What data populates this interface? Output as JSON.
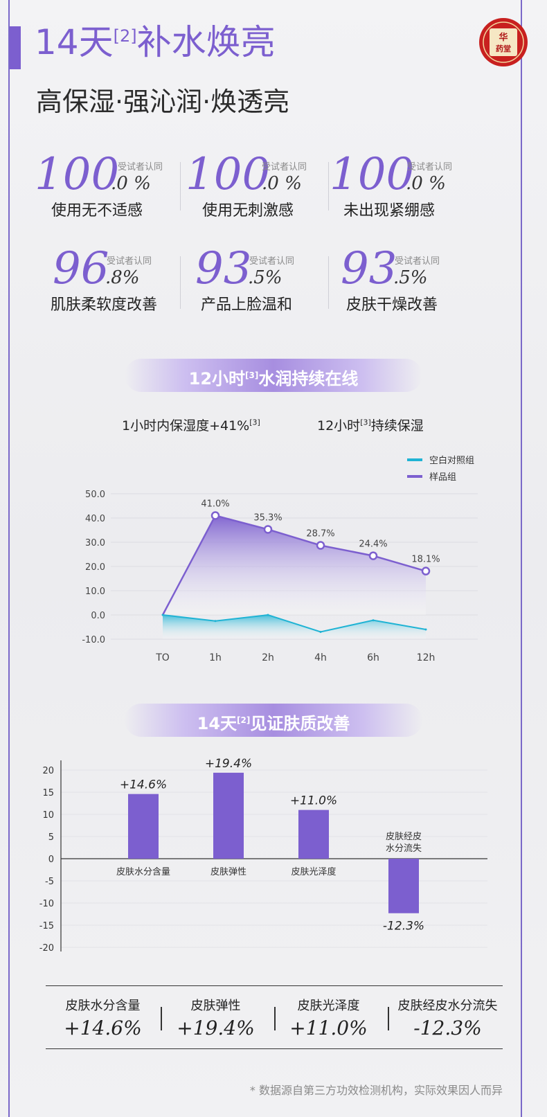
{
  "header": {
    "title_main": "14天",
    "title_sup": "[2]",
    "title_rest": "补水焕亮",
    "subtitle": "高保湿·强沁润·焕透亮",
    "logo_text": "华药堂"
  },
  "stats": [
    {
      "big": "100",
      "dec": ".0 %",
      "tag": "受试者认同",
      "label": "使用无不适感"
    },
    {
      "big": "100",
      "dec": ".0 %",
      "tag": "受试者认同",
      "label": "使用无刺激感"
    },
    {
      "big": "100",
      "dec": ".0 %",
      "tag": "受试者认同",
      "label": "未出现紧绷感"
    },
    {
      "big": "96",
      "dec": ".8%",
      "tag": "受试者认同",
      "label": "肌肤柔软度改善"
    },
    {
      "big": "93",
      "dec": ".5%",
      "tag": "受试者认同",
      "label": "产品上脸温和"
    },
    {
      "big": "93",
      "dec": ".5%",
      "tag": "受试者认同",
      "label": "皮肤干燥改善"
    }
  ],
  "section1": {
    "banner_a": "12小时",
    "banner_sup": "[3]",
    "banner_b": "水润持续在线",
    "left_a": "1小时内保湿度+41%",
    "left_sup": "[3]",
    "right_a": "12小时",
    "right_sup": "[3]",
    "right_b": "持续保湿"
  },
  "section2": {
    "banner_a": "14天",
    "banner_sup": "[2]",
    "banner_b": "见证肤质改善"
  },
  "summary": [
    {
      "label": "皮肤水分含量",
      "value": "+14.6%"
    },
    {
      "label": "皮肤弹性",
      "value": "+19.4%"
    },
    {
      "label": "皮肤光泽度",
      "value": "+11.0%"
    },
    {
      "label": "皮肤经皮水分流失",
      "value": "-12.3%"
    }
  ],
  "footnote": "* 数据源自第三方功效检测机构，实际效果因人而异",
  "colors": {
    "accent": "#7c5fcf",
    "control": "#1fb3d4"
  },
  "chart_data": [
    {
      "type": "line",
      "categories": [
        "TO",
        "1h",
        "2h",
        "4h",
        "6h",
        "12h"
      ],
      "ylim": [
        -10,
        50
      ],
      "yticks": [
        "50.0",
        "40.0",
        "30.0",
        "20.0",
        "10.0",
        "0.0",
        "-10.0"
      ],
      "legend_position": "top-right",
      "series": [
        {
          "name": "空白对照组",
          "color": "#1fb3d4",
          "values": [
            0,
            -2.5,
            0,
            -7,
            -2.2,
            -6
          ]
        },
        {
          "name": "样品组",
          "color": "#7c5fcf",
          "values": [
            0,
            41.0,
            35.3,
            28.7,
            24.4,
            18.1
          ],
          "labels": [
            "",
            "41.0%",
            "35.3%",
            "28.7%",
            "24.4%",
            "18.1%"
          ]
        }
      ]
    },
    {
      "type": "bar",
      "categories": [
        "皮肤水分含量",
        "皮肤弹性",
        "皮肤光泽度",
        "皮肤经皮水分流失"
      ],
      "category_lines": [
        [
          "皮肤水分含量"
        ],
        [
          "皮肤弹性"
        ],
        [
          "皮肤光泽度"
        ],
        [
          "皮肤经皮",
          "水分流失"
        ]
      ],
      "values": [
        14.6,
        19.4,
        11.0,
        -12.3
      ],
      "labels": [
        "+14.6%",
        "+19.4%",
        "+11.0%",
        "-12.3%"
      ],
      "ylim": [
        -20,
        20
      ],
      "yticks": [
        "20",
        "15",
        "10",
        "5",
        "0",
        "-5",
        "-10",
        "-15",
        "-20"
      ],
      "color": "#7c5fcf"
    }
  ]
}
